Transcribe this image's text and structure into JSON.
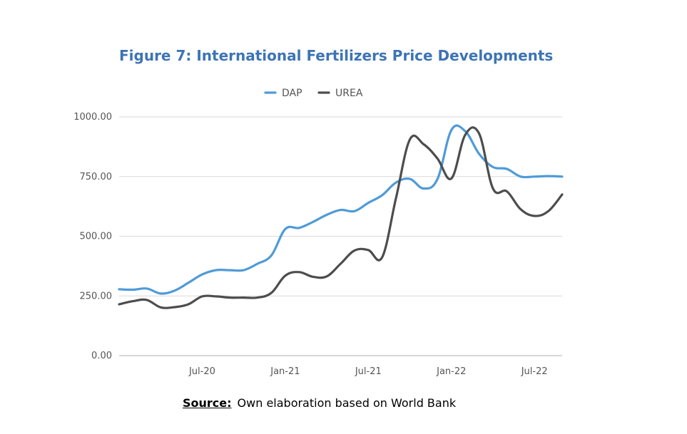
{
  "chart_data": {
    "type": "line",
    "title": "Figure 7: International Fertilizers Price Developments",
    "xlabel": "",
    "ylabel": "",
    "x": [
      "2020-01",
      "2020-02",
      "2020-03",
      "2020-04",
      "2020-05",
      "2020-06",
      "2020-07",
      "2020-08",
      "2020-09",
      "2020-10",
      "2020-11",
      "2020-12",
      "2021-01",
      "2021-02",
      "2021-03",
      "2021-04",
      "2021-05",
      "2021-06",
      "2021-07",
      "2021-08",
      "2021-09",
      "2021-10",
      "2021-11",
      "2021-12",
      "2022-01",
      "2022-02",
      "2022-03",
      "2022-04",
      "2022-05",
      "2022-06",
      "2022-07",
      "2022-08",
      "2022-09"
    ],
    "x_tick_labels": [
      "Jul-20",
      "Jan-21",
      "Jul-21",
      "Jan-22",
      "Jul-22"
    ],
    "x_tick_index": [
      6,
      12,
      18,
      24,
      30
    ],
    "y_ticks": [
      "0.00",
      "250.00",
      "500.00",
      "750.00",
      "1000.00"
    ],
    "ylim": [
      0,
      1000
    ],
    "legend_position": "top-center",
    "grid": true,
    "series": [
      {
        "name": "DAP",
        "color": "#4f9bd7",
        "values": [
          278,
          276,
          281,
          260,
          272,
          305,
          340,
          358,
          358,
          358,
          385,
          420,
          530,
          535,
          560,
          590,
          610,
          605,
          640,
          672,
          725,
          740,
          700,
          740,
          945,
          940,
          845,
          790,
          782,
          750,
          750,
          752,
          750
        ]
      },
      {
        "name": "UREA",
        "color": "#4d4d4d",
        "values": [
          215,
          228,
          233,
          202,
          203,
          215,
          248,
          248,
          243,
          243,
          243,
          263,
          335,
          350,
          330,
          332,
          385,
          440,
          442,
          412,
          660,
          905,
          885,
          825,
          742,
          925,
          930,
          700,
          688,
          613,
          585,
          605,
          675
        ]
      }
    ]
  },
  "source": {
    "label": "Source:",
    "text": "Own elaboration based on World Bank"
  }
}
